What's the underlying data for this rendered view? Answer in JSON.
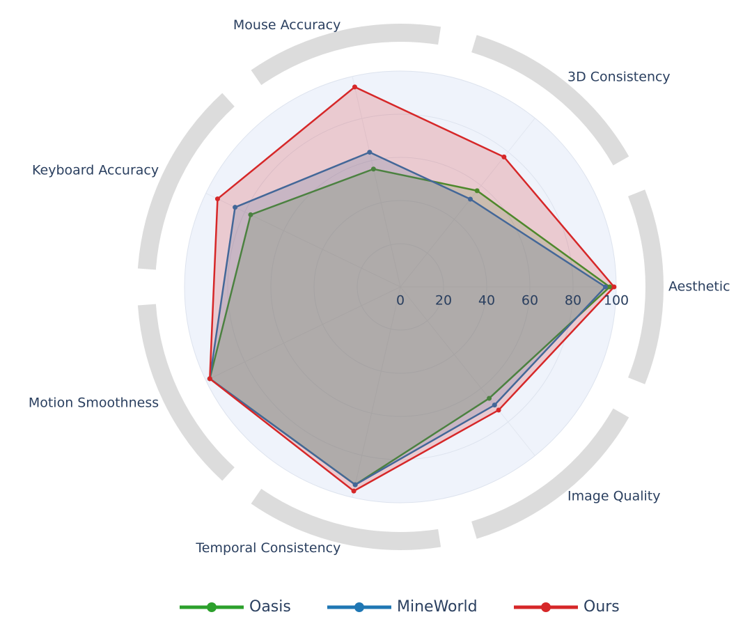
{
  "chart_data": {
    "type": "radar",
    "categories": [
      "Aesthetic",
      "3D Consistency",
      "Mouse Accuracy",
      "Keyboard Accuracy",
      "Motion Smoothness",
      "Temporal Consistency",
      "Image Quality"
    ],
    "rlim": [
      0,
      100
    ],
    "rticks": [
      0,
      20,
      40,
      60,
      80,
      100
    ],
    "series": [
      {
        "name": "Oasis",
        "color": "#2ca02c",
        "values": [
          97,
          57,
          56,
          77,
          98,
          94,
          66
        ]
      },
      {
        "name": "MineWorld",
        "color": "#1f77b4",
        "values": [
          95,
          52,
          64,
          85,
          98,
          94,
          70
        ]
      },
      {
        "name": "Ours",
        "color": "#d62728",
        "values": [
          99,
          77,
          95,
          94,
          98,
          97,
          73
        ]
      }
    ]
  }
}
